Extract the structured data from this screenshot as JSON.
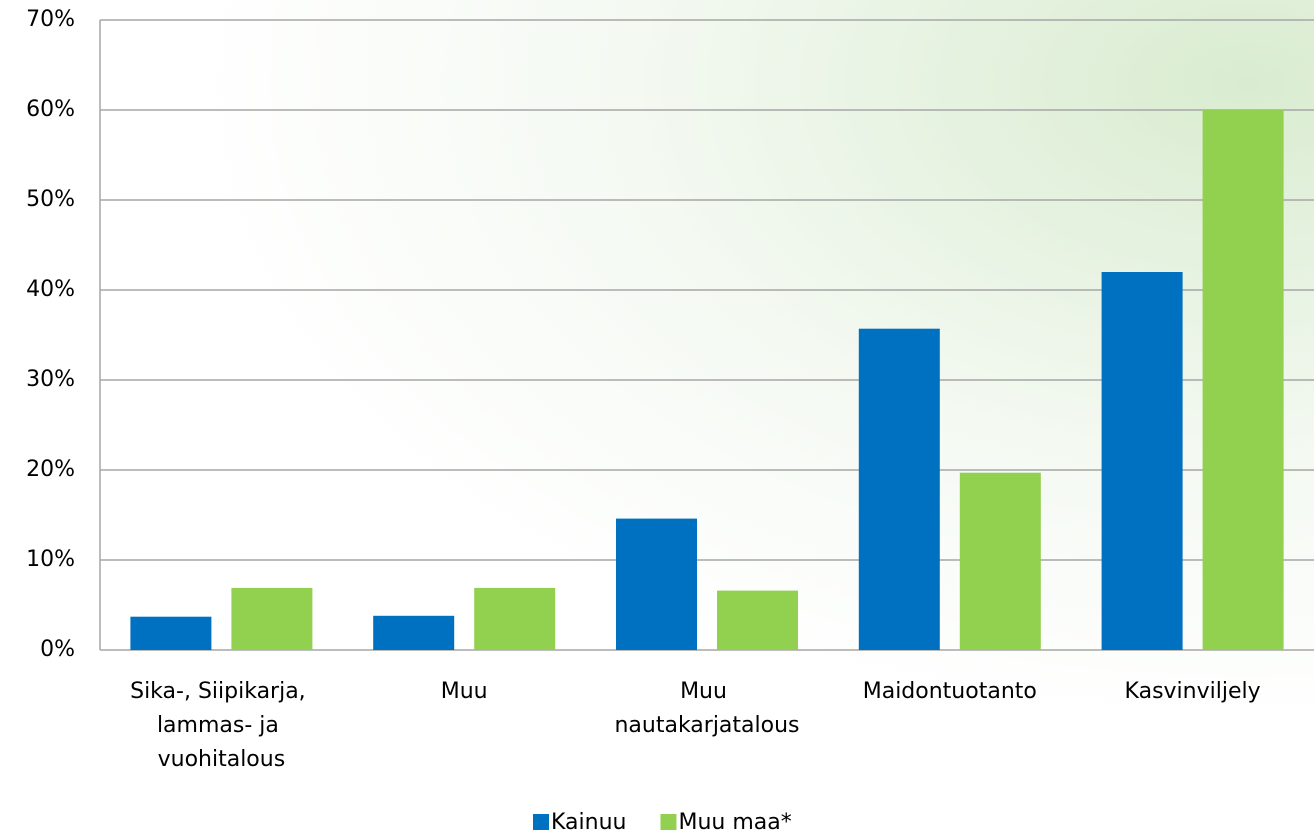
{
  "chart_data": {
    "type": "bar",
    "categories": [
      "Sika-, Siipikarja, lammas- ja vuohitalous",
      "Muu",
      "Muu nautakarjatalous",
      "Maidontuotanto",
      "Kasvinviljely"
    ],
    "series": [
      {
        "name": "Kainuu",
        "color": "#0070c0",
        "values": [
          3.7,
          3.8,
          14.6,
          35.7,
          42
        ]
      },
      {
        "name": "Muu maa*",
        "color": "#92d050",
        "values": [
          6.9,
          6.9,
          6.6,
          19.7,
          60
        ]
      }
    ],
    "ylim": [
      0,
      70
    ],
    "yticks": [
      {
        "value": 0,
        "label": "0%"
      },
      {
        "value": 10,
        "label": "10%"
      },
      {
        "value": 20,
        "label": "20%"
      },
      {
        "value": 30,
        "label": "30%"
      },
      {
        "value": 40,
        "label": "40%"
      },
      {
        "value": 50,
        "label": "50%"
      },
      {
        "value": 60,
        "label": "60%"
      },
      {
        "value": 70,
        "label": "70%"
      }
    ],
    "grid": true,
    "legend": "bottom"
  }
}
